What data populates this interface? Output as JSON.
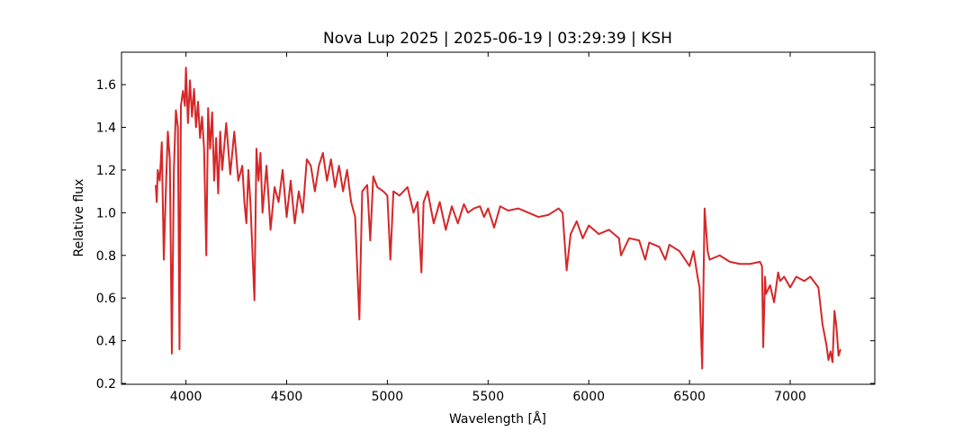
{
  "chart_data": {
    "type": "line",
    "title": "Nova Lup 2025 | 2025-06-19 | 03:29:39 | KSH",
    "xlabel": "Wavelength [Å]",
    "ylabel": "Relative flux",
    "xlim": [
      3680,
      7420
    ],
    "ylim": [
      0.196,
      1.752
    ],
    "xticks": [
      4000,
      4500,
      5000,
      5500,
      6000,
      6500,
      7000
    ],
    "yticks": [
      0.2,
      0.4,
      0.6,
      0.8,
      {
        "value": 1.0,
        "label": "1.0"
      },
      1.2,
      1.4,
      1.6
    ],
    "grid": false,
    "series": [
      {
        "color": "#d62728",
        "x": [
          3850,
          3855,
          3860,
          3870,
          3880,
          3890,
          3900,
          3910,
          3920,
          3930,
          3940,
          3950,
          3960,
          3968,
          3975,
          3985,
          3995,
          4000,
          4010,
          4020,
          4030,
          4040,
          4050,
          4060,
          4070,
          4080,
          4090,
          4101,
          4110,
          4120,
          4130,
          4140,
          4150,
          4160,
          4170,
          4180,
          4200,
          4220,
          4240,
          4260,
          4280,
          4290,
          4300,
          4310,
          4320,
          4340,
          4350,
          4360,
          4370,
          4380,
          4400,
          4420,
          4440,
          4460,
          4480,
          4500,
          4520,
          4540,
          4560,
          4580,
          4600,
          4620,
          4640,
          4660,
          4680,
          4700,
          4720,
          4740,
          4760,
          4780,
          4800,
          4820,
          4840,
          4861,
          4875,
          4900,
          4915,
          4930,
          4950,
          4980,
          5000,
          5015,
          5030,
          5060,
          5100,
          5130,
          5150,
          5169,
          5180,
          5200,
          5230,
          5260,
          5290,
          5320,
          5350,
          5380,
          5400,
          5430,
          5460,
          5480,
          5500,
          5530,
          5560,
          5600,
          5650,
          5700,
          5750,
          5800,
          5850,
          5870,
          5890,
          5910,
          5940,
          5970,
          6000,
          6050,
          6100,
          6150,
          6160,
          6200,
          6250,
          6280,
          6300,
          6350,
          6380,
          6400,
          6450,
          6500,
          6520,
          6540,
          6550,
          6563,
          6575,
          6590,
          6600,
          6650,
          6700,
          6750,
          6800,
          6850,
          6860,
          6866,
          6875,
          6880,
          6900,
          6920,
          6940,
          6950,
          6970,
          7000,
          7030,
          7070,
          7100,
          7140,
          7160,
          7180,
          7190,
          7200,
          7210,
          7220,
          7230,
          7240,
          7250
        ],
        "values": [
          1.13,
          1.05,
          1.2,
          1.15,
          1.33,
          0.78,
          1.1,
          1.38,
          1.25,
          0.34,
          1.2,
          1.48,
          1.4,
          0.36,
          1.5,
          1.57,
          1.5,
          1.68,
          1.42,
          1.62,
          1.45,
          1.58,
          1.4,
          1.52,
          1.35,
          1.45,
          1.3,
          0.8,
          1.49,
          1.3,
          1.47,
          1.15,
          1.35,
          1.09,
          1.38,
          1.2,
          1.42,
          1.18,
          1.38,
          1.15,
          1.22,
          1.05,
          0.95,
          1.2,
          1.05,
          0.59,
          1.3,
          1.15,
          1.28,
          1.0,
          1.22,
          0.92,
          1.12,
          1.05,
          1.2,
          0.98,
          1.15,
          0.95,
          1.1,
          1.0,
          1.25,
          1.22,
          1.1,
          1.22,
          1.28,
          1.15,
          1.25,
          1.12,
          1.22,
          1.1,
          1.2,
          1.05,
          0.98,
          0.5,
          1.1,
          1.13,
          0.87,
          1.17,
          1.12,
          1.1,
          1.08,
          0.78,
          1.1,
          1.08,
          1.12,
          1.0,
          1.05,
          0.72,
          1.05,
          1.1,
          0.95,
          1.05,
          0.92,
          1.03,
          0.95,
          1.04,
          1.0,
          1.02,
          1.03,
          0.98,
          1.02,
          0.93,
          1.03,
          1.01,
          1.02,
          1.0,
          0.98,
          0.99,
          1.02,
          1.0,
          0.73,
          0.9,
          0.96,
          0.88,
          0.94,
          0.9,
          0.92,
          0.88,
          0.8,
          0.88,
          0.87,
          0.78,
          0.86,
          0.84,
          0.78,
          0.85,
          0.82,
          0.75,
          0.82,
          0.7,
          0.65,
          0.27,
          1.02,
          0.82,
          0.78,
          0.8,
          0.77,
          0.76,
          0.76,
          0.77,
          0.75,
          0.37,
          0.7,
          0.62,
          0.66,
          0.58,
          0.72,
          0.68,
          0.7,
          0.65,
          0.7,
          0.68,
          0.7,
          0.65,
          0.48,
          0.38,
          0.31,
          0.35,
          0.3,
          0.54,
          0.46,
          0.33,
          0.36
        ]
      }
    ]
  }
}
